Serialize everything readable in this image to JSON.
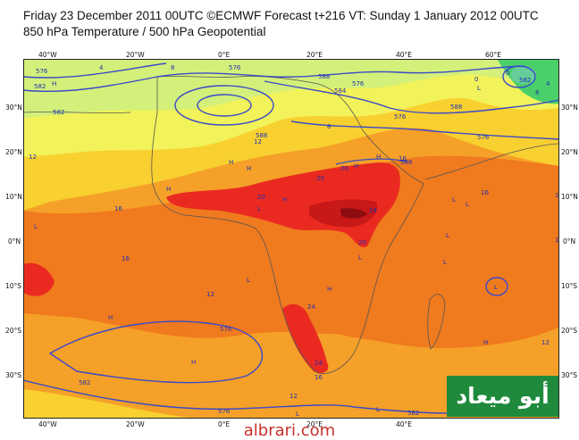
{
  "header": {
    "line1": "Friday 23 December 2011 00UTC ©ECMWF Forecast t+216 VT: Sunday 1 January 2012 00UTC",
    "line2": "850 hPa Temperature / 500 hPa Geopotential"
  },
  "axes": {
    "longitudes": [
      "40°W",
      "20°W",
      "0°E",
      "20°E",
      "40°E",
      "60°E"
    ],
    "latitudes": [
      "30°N",
      "20°N",
      "10°N",
      "0°N",
      "10°S",
      "20°S",
      "30°S"
    ]
  },
  "contour_labels": {
    "geopotential": [
      "576",
      "582",
      "576",
      "588",
      "576",
      "588",
      "584",
      "576",
      "582",
      "588",
      "576",
      "588",
      "582",
      "582",
      "576",
      "576",
      "582"
    ],
    "temperature": [
      "0",
      "4",
      "8",
      "8",
      "12",
      "12",
      "16",
      "16",
      "12",
      "16",
      "20",
      "20",
      "20",
      "24",
      "24",
      "20",
      "24",
      "16",
      "12",
      "16",
      "12",
      "16",
      "16",
      "0",
      "4",
      "8"
    ]
  },
  "pressure_markers": [
    "H",
    "H",
    "H",
    "H",
    "H",
    "H",
    "H",
    "H",
    "H",
    "H",
    "H",
    "L",
    "L",
    "L",
    "L",
    "L",
    "L",
    "L",
    "L",
    "L",
    "L",
    "L",
    "L"
  ],
  "colors": {
    "t_4": "#d3f07a",
    "t_8": "#f2f25a",
    "t_12": "#f8d030",
    "t_16": "#f5a028",
    "t_20": "#f07a1e",
    "t_24": "#ea2a20",
    "t_28": "#c81818",
    "t_32": "#8c0c10",
    "t_cold": "#4ad06a",
    "t_cold2": "#66cc99",
    "contour": "#3a4ac8",
    "coast": "#555555"
  },
  "branding": {
    "arabic_logo": "أبو ميعاد",
    "site": "albrari.com"
  }
}
